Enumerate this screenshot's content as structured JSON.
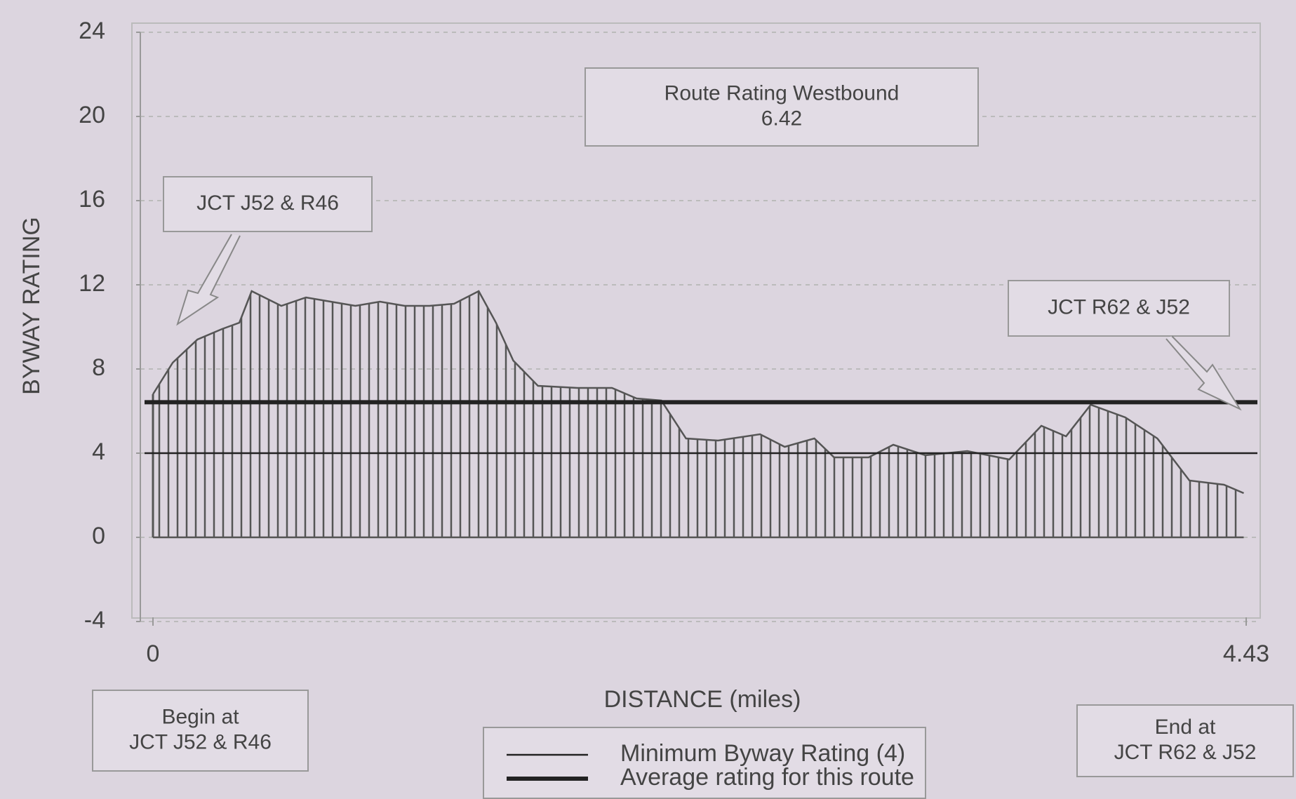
{
  "chart_data": {
    "type": "area",
    "xlabel": "DISTANCE (miles)",
    "ylabel": "BYWAY RATING",
    "xlim": [
      0,
      4.43
    ],
    "xticks": [
      0,
      4.43
    ],
    "ylim": [
      -4,
      24
    ],
    "yticks": [
      -4,
      0,
      4,
      8,
      12,
      16,
      20,
      24
    ],
    "grid": true,
    "x": [
      0,
      0.08,
      0.18,
      0.28,
      0.35,
      0.4,
      0.52,
      0.62,
      0.72,
      0.82,
      0.92,
      1.02,
      1.12,
      1.22,
      1.32,
      1.39,
      1.46,
      1.56,
      1.72,
      1.86,
      1.96,
      2.06,
      2.16,
      2.29,
      2.46,
      2.56,
      2.68,
      2.76,
      2.9,
      3.0,
      3.13,
      3.3,
      3.47,
      3.6,
      3.7,
      3.8,
      3.94,
      4.07,
      4.2,
      4.34,
      4.42
    ],
    "values": [
      6.8,
      8.3,
      9.4,
      9.9,
      10.2,
      11.7,
      11.0,
      11.4,
      11.2,
      11.0,
      11.2,
      11.0,
      11.0,
      11.1,
      11.7,
      10.2,
      8.4,
      7.2,
      7.1,
      7.1,
      6.6,
      6.5,
      4.7,
      4.6,
      4.9,
      4.3,
      4.7,
      3.8,
      3.8,
      4.4,
      3.9,
      4.1,
      3.7,
      5.3,
      4.8,
      6.3,
      5.7,
      4.7,
      2.7,
      2.5,
      2.1
    ],
    "color": "#555555",
    "reference_lines": [
      {
        "name": "Minimum Byway Rating (4)",
        "value": 4,
        "width": 2.5
      },
      {
        "name": "Average rating for this route",
        "value": 6.42,
        "width": 6
      }
    ],
    "annotations": [
      {
        "lines": [
          "Route Rating Westbound",
          "6.42"
        ]
      },
      {
        "lines": [
          "JCT J52 & R46"
        ]
      },
      {
        "lines": [
          "JCT R62 & J52"
        ]
      },
      {
        "lines": [
          "Begin at",
          "JCT J52 & R46"
        ]
      },
      {
        "lines": [
          "End at",
          "JCT R62 & J52"
        ]
      }
    ]
  }
}
